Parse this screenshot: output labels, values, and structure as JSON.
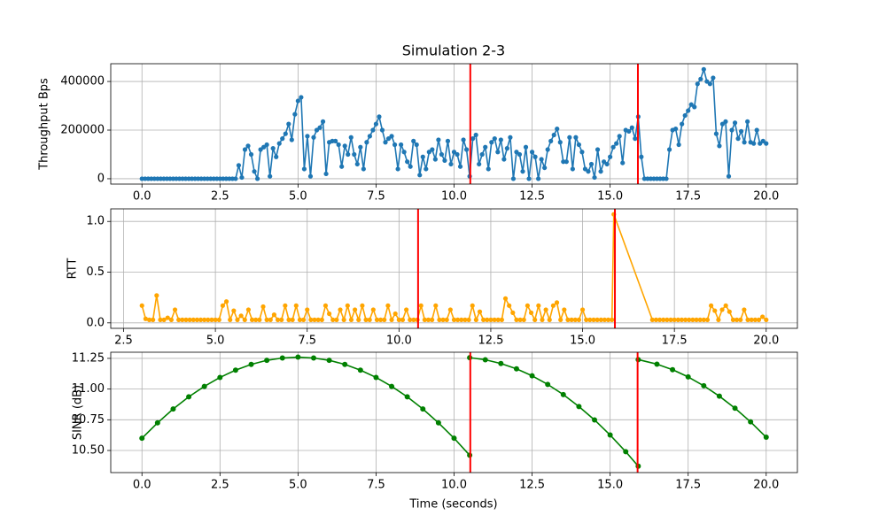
{
  "chart_data": [
    {
      "type": "line",
      "title": "Simulation 2-3",
      "ylabel": "Throughput Bps",
      "color": "#1f77b4",
      "grid": true,
      "xlim": [
        -1,
        21
      ],
      "ylim": [
        -22000,
        473000
      ],
      "xticks": [
        {
          "value": 0,
          "label": "0.0"
        },
        2.5,
        {
          "value": 5,
          "label": "5.0"
        },
        7.5,
        {
          "value": 10,
          "label": "10.0"
        },
        12.5,
        {
          "value": 15,
          "label": "15.0"
        },
        17.5,
        {
          "value": 20,
          "label": "20.0"
        }
      ],
      "yticks": [
        0,
        200000,
        400000
      ],
      "vlines": [
        10.52,
        15.89
      ],
      "vline_color": "#ff0000",
      "x": [
        0,
        0.1,
        0.2,
        0.3,
        0.4,
        0.5,
        0.6,
        0.7,
        0.8,
        0.9,
        1,
        1.1,
        1.2,
        1.3,
        1.4,
        1.5,
        1.6,
        1.7,
        1.8,
        1.9,
        2,
        2.1,
        2.2,
        2.3,
        2.4,
        2.5,
        2.6,
        2.7,
        2.8,
        2.9,
        3,
        3.1,
        3.2,
        3.3,
        3.4,
        3.5,
        3.6,
        3.7,
        3.8,
        3.9,
        4,
        4.1,
        4.2,
        4.3,
        4.4,
        4.5,
        4.6,
        4.7,
        4.8,
        4.9,
        5,
        5.1,
        5.2,
        5.3,
        5.4,
        5.5,
        5.6,
        5.7,
        5.8,
        5.9,
        6,
        6.1,
        6.2,
        6.3,
        6.4,
        6.5,
        6.6,
        6.7,
        6.8,
        6.9,
        7,
        7.1,
        7.2,
        7.3,
        7.4,
        7.5,
        7.6,
        7.7,
        7.8,
        7.9,
        8,
        8.1,
        8.2,
        8.3,
        8.4,
        8.5,
        8.6,
        8.7,
        8.8,
        8.9,
        9,
        9.1,
        9.2,
        9.3,
        9.4,
        9.5,
        9.6,
        9.7,
        9.8,
        9.9,
        10,
        10.1,
        10.2,
        10.3,
        10.4,
        10.5,
        10.6,
        10.7,
        10.8,
        10.9,
        11,
        11.1,
        11.2,
        11.3,
        11.4,
        11.5,
        11.6,
        11.7,
        11.8,
        11.9,
        12,
        12.1,
        12.2,
        12.3,
        12.4,
        12.5,
        12.6,
        12.7,
        12.8,
        12.9,
        13,
        13.1,
        13.2,
        13.3,
        13.4,
        13.5,
        13.6,
        13.7,
        13.8,
        13.9,
        14,
        14.1,
        14.2,
        14.3,
        14.4,
        14.5,
        14.6,
        14.7,
        14.8,
        14.9,
        15,
        15.1,
        15.2,
        15.3,
        15.4,
        15.5,
        15.6,
        15.7,
        15.8,
        15.9,
        16,
        16.1,
        16.2,
        16.3,
        16.4,
        16.5,
        16.6,
        16.7,
        16.8,
        16.9,
        17,
        17.1,
        17.2,
        17.3,
        17.4,
        17.5,
        17.6,
        17.7,
        17.8,
        17.9,
        18,
        18.1,
        18.2,
        18.3,
        18.4,
        18.5,
        18.6,
        18.7,
        18.8,
        18.9,
        19,
        19.1,
        19.2,
        19.3,
        19.4,
        19.5,
        19.6,
        19.7,
        19.8,
        19.9,
        20
      ],
      "values": [
        0,
        0,
        0,
        0,
        0,
        0,
        0,
        0,
        0,
        0,
        0,
        0,
        0,
        0,
        0,
        0,
        0,
        0,
        0,
        0,
        0,
        0,
        0,
        0,
        0,
        0,
        0,
        0,
        0,
        0,
        0,
        55000,
        5000,
        120000,
        135000,
        100000,
        30000,
        0,
        120000,
        130000,
        140000,
        10000,
        125000,
        90000,
        145000,
        165000,
        185000,
        225000,
        160000,
        265000,
        320000,
        335000,
        40000,
        175000,
        10000,
        170000,
        200000,
        210000,
        235000,
        20000,
        150000,
        155000,
        155000,
        140000,
        50000,
        135000,
        100000,
        170000,
        100000,
        60000,
        130000,
        40000,
        150000,
        175000,
        200000,
        225000,
        255000,
        200000,
        150000,
        165000,
        175000,
        140000,
        40000,
        140000,
        110000,
        70000,
        50000,
        155000,
        140000,
        15000,
        90000,
        40000,
        110000,
        120000,
        80000,
        160000,
        100000,
        75000,
        155000,
        60000,
        110000,
        100000,
        50000,
        160000,
        120000,
        10000,
        165000,
        180000,
        60000,
        100000,
        130000,
        40000,
        150000,
        165000,
        110000,
        160000,
        80000,
        125000,
        170000,
        0,
        110000,
        100000,
        30000,
        130000,
        0,
        110000,
        90000,
        0,
        80000,
        45000,
        120000,
        155000,
        180000,
        205000,
        150000,
        70000,
        70000,
        170000,
        40000,
        170000,
        140000,
        110000,
        40000,
        30000,
        60000,
        5000,
        120000,
        30000,
        70000,
        60000,
        90000,
        130000,
        145000,
        175000,
        65000,
        200000,
        195000,
        210000,
        165000,
        255000,
        90000,
        0,
        0,
        0,
        0,
        0,
        0,
        0,
        0,
        120000,
        200000,
        205000,
        140000,
        225000,
        260000,
        280000,
        305000,
        295000,
        390000,
        410000,
        450000,
        400000,
        390000,
        415000,
        185000,
        135000,
        225000,
        235000,
        10000,
        200000,
        230000,
        165000,
        195000,
        150000,
        235000,
        150000,
        145000,
        200000,
        145000,
        155000,
        145000
      ]
    },
    {
      "type": "line",
      "ylabel": "RTT",
      "color": "#ffa500",
      "grid": true,
      "xlim": [
        2.15,
        20.85
      ],
      "ylim": [
        -0.054,
        1.124
      ],
      "xticks": [
        2.5,
        {
          "value": 5,
          "label": "5.0"
        },
        7.5,
        {
          "value": 10,
          "label": "10.0"
        },
        12.5,
        {
          "value": 15,
          "label": "15.0"
        },
        17.5,
        {
          "value": 20,
          "label": "20.0"
        }
      ],
      "yticks": [
        {
          "value": 0,
          "label": "0.0"
        },
        0.5,
        {
          "value": 1,
          "label": "1.0"
        }
      ],
      "vlines": [
        10.52,
        15.88
      ],
      "vline_color": "#ff0000",
      "x": [
        3,
        3.1,
        3.2,
        3.3,
        3.4,
        3.5,
        3.6,
        3.7,
        3.8,
        3.9,
        4,
        4.1,
        4.2,
        4.3,
        4.4,
        4.5,
        4.6,
        4.7,
        4.8,
        4.9,
        5,
        5.1,
        5.2,
        5.3,
        5.4,
        5.5,
        5.6,
        5.7,
        5.8,
        5.9,
        6,
        6.1,
        6.2,
        6.3,
        6.4,
        6.5,
        6.6,
        6.7,
        6.8,
        6.9,
        7,
        7.1,
        7.2,
        7.3,
        7.4,
        7.5,
        7.6,
        7.7,
        7.8,
        7.9,
        8,
        8.1,
        8.2,
        8.3,
        8.4,
        8.5,
        8.6,
        8.7,
        8.8,
        8.9,
        9,
        9.1,
        9.2,
        9.3,
        9.4,
        9.5,
        9.6,
        9.7,
        9.8,
        9.9,
        10,
        10.1,
        10.2,
        10.3,
        10.4,
        10.5,
        10.6,
        10.7,
        10.8,
        10.9,
        11,
        11.1,
        11.2,
        11.3,
        11.4,
        11.5,
        11.6,
        11.7,
        11.8,
        11.9,
        12,
        12.1,
        12.2,
        12.3,
        12.4,
        12.5,
        12.6,
        12.7,
        12.8,
        12.9,
        13,
        13.1,
        13.2,
        13.3,
        13.4,
        13.5,
        13.6,
        13.7,
        13.8,
        13.9,
        14,
        14.1,
        14.2,
        14.3,
        14.4,
        14.5,
        14.6,
        14.7,
        14.8,
        14.9,
        15,
        15.1,
        15.2,
        15.3,
        15.4,
        15.5,
        15.6,
        15.7,
        15.8,
        15.85,
        16.9,
        17,
        17.1,
        17.2,
        17.3,
        17.4,
        17.5,
        17.6,
        17.7,
        17.8,
        17.9,
        18,
        18.1,
        18.2,
        18.3,
        18.4,
        18.5,
        18.6,
        18.7,
        18.8,
        18.9,
        19,
        19.1,
        19.2,
        19.3,
        19.4,
        19.5,
        19.6,
        19.7,
        19.8,
        19.9,
        20
      ],
      "values": [
        0.17,
        0.04,
        0.03,
        0.03,
        0.27,
        0.03,
        0.03,
        0.05,
        0.03,
        0.13,
        0.03,
        0.03,
        0.03,
        0.03,
        0.03,
        0.03,
        0.03,
        0.03,
        0.03,
        0.03,
        0.03,
        0.03,
        0.17,
        0.21,
        0.03,
        0.12,
        0.03,
        0.07,
        0.03,
        0.13,
        0.03,
        0.03,
        0.03,
        0.16,
        0.03,
        0.03,
        0.08,
        0.03,
        0.03,
        0.17,
        0.03,
        0.03,
        0.17,
        0.03,
        0.03,
        0.13,
        0.03,
        0.03,
        0.03,
        0.03,
        0.17,
        0.09,
        0.03,
        0.03,
        0.13,
        0.03,
        0.17,
        0.03,
        0.13,
        0.03,
        0.17,
        0.03,
        0.03,
        0.13,
        0.03,
        0.03,
        0.03,
        0.17,
        0.03,
        0.09,
        0.03,
        0.03,
        0.13,
        0.03,
        0.03,
        0.03,
        0.17,
        0.03,
        0.03,
        0.03,
        0.17,
        0.03,
        0.03,
        0.03,
        0.13,
        0.03,
        0.03,
        0.03,
        0.03,
        0.03,
        0.17,
        0.03,
        0.11,
        0.03,
        0.03,
        0.03,
        0.03,
        0.03,
        0.03,
        0.24,
        0.17,
        0.1,
        0.03,
        0.03,
        0.03,
        0.17,
        0.1,
        0.03,
        0.17,
        0.03,
        0.13,
        0.03,
        0.17,
        0.2,
        0.03,
        0.13,
        0.03,
        0.03,
        0.03,
        0.03,
        0.13,
        0.03,
        0.03,
        0.03,
        0.03,
        0.03,
        0.03,
        0.03,
        0.03,
        1.07,
        0.03,
        0.03,
        0.03,
        0.03,
        0.03,
        0.03,
        0.03,
        0.03,
        0.03,
        0.03,
        0.03,
        0.03,
        0.03,
        0.03,
        0.03,
        0.03,
        0.17,
        0.12,
        0.03,
        0.13,
        0.17,
        0.11,
        0.03,
        0.03,
        0.03,
        0.13,
        0.03,
        0.03,
        0.03,
        0.03,
        0.06,
        0.03
      ]
    },
    {
      "type": "line",
      "ylabel": "SINR (dB)",
      "xlabel": "Time (seconds)",
      "color": "#008000",
      "grid": true,
      "xlim": [
        -1,
        21
      ],
      "ylim": [
        10.32,
        11.3
      ],
      "xticks": [
        {
          "value": 0,
          "label": "0.0"
        },
        2.5,
        {
          "value": 5,
          "label": "5.0"
        },
        7.5,
        {
          "value": 10,
          "label": "10.0"
        },
        12.5,
        {
          "value": 15,
          "label": "15.0"
        },
        17.5,
        {
          "value": 20,
          "label": "20.0"
        }
      ],
      "yticks": [
        {
          "value": 10.5,
          "label": "10.50"
        },
        10.75,
        {
          "value": 11,
          "label": "11.00"
        },
        11.25
      ],
      "vlines": [
        10.52,
        15.88
      ],
      "vline_color": "#ff0000",
      "x": [
        0,
        0.5,
        1,
        1.5,
        2,
        2.5,
        3,
        3.5,
        4,
        4.5,
        5,
        5.5,
        6,
        6.5,
        7,
        7.5,
        8,
        8.5,
        9,
        9.5,
        10,
        10.5,
        10.5,
        10.5,
        11,
        11.5,
        12,
        12.5,
        13,
        13.5,
        14,
        14.5,
        15,
        15.5,
        15.9,
        15.9,
        15.9,
        16.5,
        17,
        17.5,
        18,
        18.5,
        19,
        19.5,
        20
      ],
      "values": [
        10.6,
        10.725,
        10.838,
        10.937,
        11.022,
        11.095,
        11.154,
        11.201,
        11.234,
        11.253,
        11.26,
        11.253,
        11.234,
        11.201,
        11.154,
        11.095,
        11.022,
        10.937,
        10.838,
        10.725,
        10.6,
        10.461,
        null,
        11.256,
        11.239,
        11.208,
        11.165,
        11.108,
        11.038,
        10.955,
        10.858,
        10.749,
        10.626,
        10.49,
        10.372,
        null,
        11.24,
        11.203,
        11.158,
        11.099,
        11.027,
        10.942,
        10.844,
        10.733,
        10.608
      ]
    }
  ]
}
